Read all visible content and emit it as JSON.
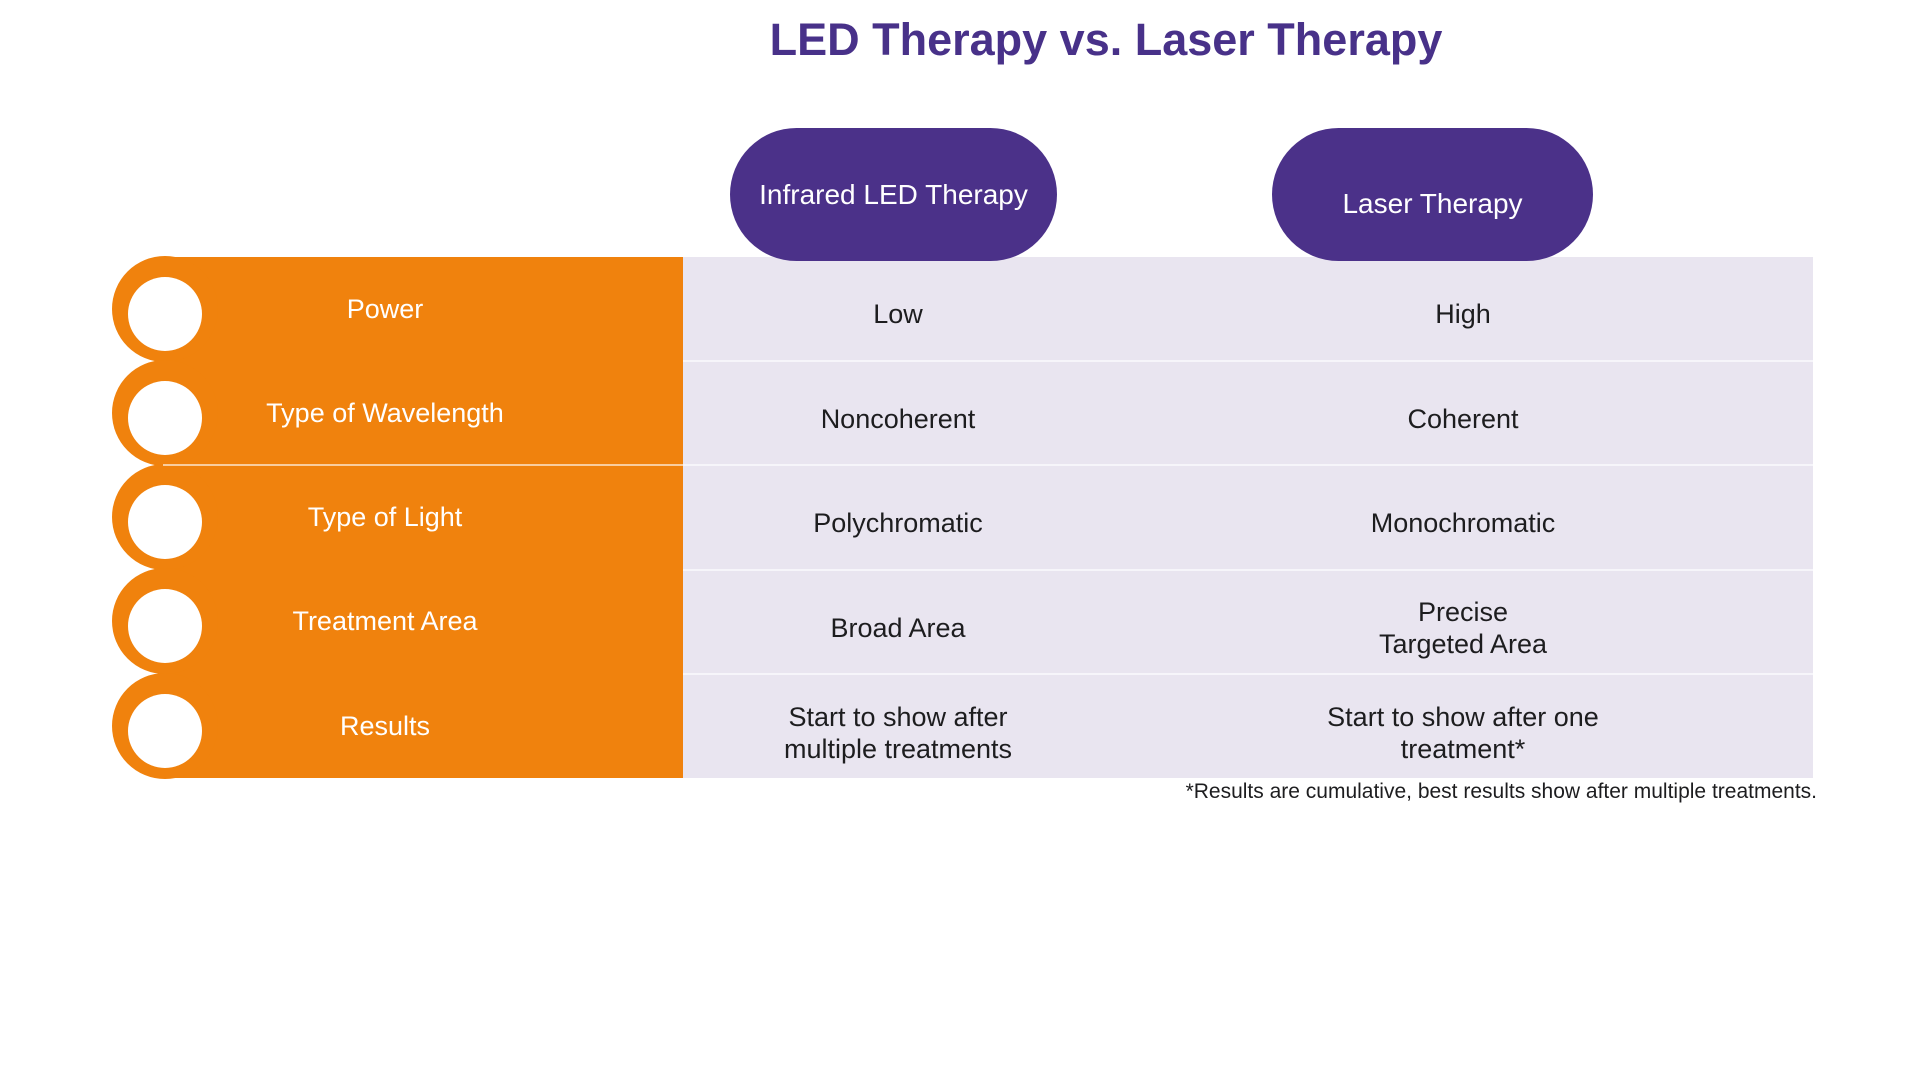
{
  "title": "LED Therapy vs. Laser Therapy",
  "columns": [
    {
      "label": "Infrared LED Therapy"
    },
    {
      "label": "Laser Therapy"
    }
  ],
  "table": {
    "rows": [
      {
        "label": "Power",
        "led": "Low",
        "laser": "High"
      },
      {
        "label": "Type of Wavelength",
        "led": "Noncoherent",
        "laser": "Coherent"
      },
      {
        "label": "Type of Light",
        "led": "Polychromatic",
        "laser": "Monochromatic"
      },
      {
        "label": "Treatment Area",
        "led": "Broad Area",
        "laser": "Precise\nTargeted Area"
      },
      {
        "label": "Results",
        "led": "Start to show after\nmultiple treatments",
        "laser": "Start to show after one\ntreatment*"
      }
    ]
  },
  "footnote": "*Results are cumulative, best results show after multiple treatments.",
  "colors": {
    "orange": "#F0820D",
    "pill_purple": "#4B3189",
    "title_purple": "#483189",
    "table_lavender": "#E9E5F0",
    "text_dark": "#1D1D1F",
    "bullet_white": "#FFFFFF"
  },
  "chart_data": {
    "type": "table",
    "title": "LED Therapy vs. Laser Therapy",
    "columns": [
      "Infrared LED Therapy",
      "Laser Therapy"
    ],
    "row_headers": [
      "Power",
      "Type of Wavelength",
      "Type of Light",
      "Treatment Area",
      "Results"
    ],
    "rows": [
      [
        "Low",
        "High"
      ],
      [
        "Noncoherent",
        "Coherent"
      ],
      [
        "Polychromatic",
        "Monochromatic"
      ],
      [
        "Broad Area",
        "Precise Targeted Area"
      ],
      [
        "Start to show after multiple treatments",
        "Start to show after one treatment*"
      ]
    ],
    "footnote": "*Results are cumulative, best results show after multiple treatments.",
    "legend_position": "none",
    "grid": "row-separators"
  }
}
